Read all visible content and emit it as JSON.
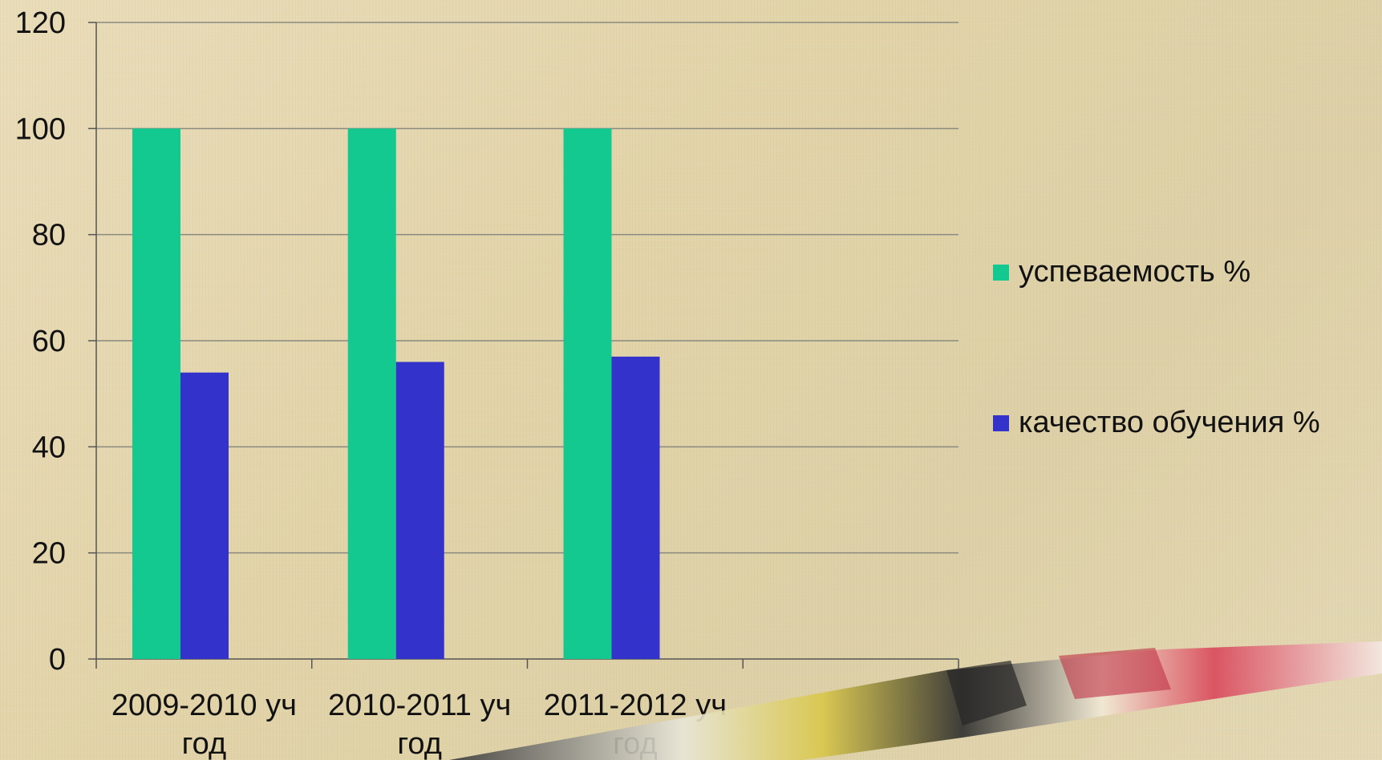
{
  "chart_data": {
    "type": "bar",
    "categories": [
      [
        "2009-2010 уч",
        "год"
      ],
      [
        "2010-2011 уч",
        "год"
      ],
      [
        "2011-2012 уч",
        "год"
      ],
      [
        "",
        ""
      ]
    ],
    "series": [
      {
        "name": "успеваемость %",
        "values": [
          100,
          100,
          100,
          null
        ],
        "color": "#13c98f"
      },
      {
        "name": "качество обучения %",
        "values": [
          54,
          56,
          57,
          null
        ],
        "color": "#3333cc"
      }
    ],
    "ylim": [
      0,
      120
    ],
    "yticks": [
      0,
      20,
      40,
      60,
      80,
      100,
      120
    ],
    "grid": true,
    "legend": "right"
  }
}
